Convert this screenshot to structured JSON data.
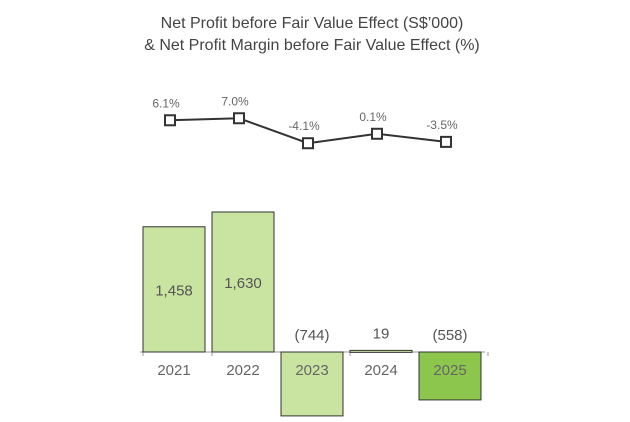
{
  "chart_data": [
    {
      "type": "line",
      "title": "Net Profit before Fair Value Effect (S$’000)",
      "categories": [
        "2021",
        "2022",
        "2023",
        "2024",
        "2025"
      ],
      "values": [
        6.1,
        7.0,
        -4.1,
        0.1,
        -3.5
      ],
      "labels": [
        "6.1%",
        "7.0%",
        "-4.1%",
        "0.1%",
        "-3.5%"
      ],
      "color": "#333333"
    },
    {
      "type": "bar",
      "title": "& Net Profit Margin before Fair Value Effect (%)",
      "categories": [
        "2021",
        "2022",
        "2023",
        "2024",
        "2025"
      ],
      "values": [
        1458,
        1630,
        -744,
        19,
        -558
      ],
      "labels": [
        "1,458",
        "1,630",
        "(744)",
        "19",
        "(558)"
      ],
      "colors": {
        "bar": "#c9e3a0",
        "bar_highlight": "#8dc64d",
        "bar_outline": "#333333"
      },
      "highlight_index": 4
    }
  ]
}
